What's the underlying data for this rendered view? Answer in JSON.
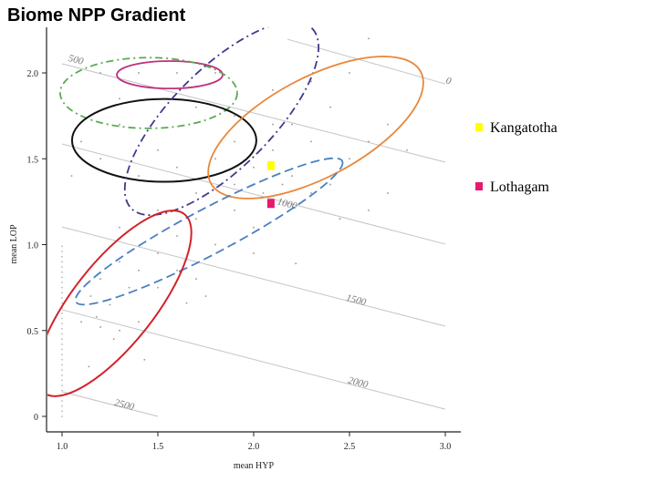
{
  "chart_data": {
    "type": "scatter",
    "title": "Biome NPP Gradient",
    "xlabel": "mean HYP",
    "ylabel": "mean LOP",
    "xlim": [
      0.92,
      3.07
    ],
    "ylim": [
      -0.09,
      2.3
    ],
    "xticks": [
      "1.0",
      "1.5",
      "2.0",
      "2.5",
      "3.0"
    ],
    "yticks": [
      "0",
      "0.5",
      "1.0",
      "1.5",
      "2.0"
    ],
    "grid": false,
    "contours": [
      {
        "label": "0",
        "from": [
          2.176,
          2.196
        ],
        "to": [
          3.0,
          1.936
        ],
        "label_at": [
          3.0,
          1.94
        ]
      },
      {
        "label": "500",
        "from": [
          1.0,
          2.053
        ],
        "to": [
          3.0,
          1.48
        ],
        "label_at": [
          1.03,
          2.07
        ]
      },
      {
        "label": "1000",
        "from": [
          1.0,
          1.586
        ],
        "to": [
          3.0,
          1.003
        ],
        "label_at": [
          2.12,
          1.235
        ]
      },
      {
        "label": "1500",
        "from": [
          1.0,
          1.103
        ],
        "to": [
          3.0,
          0.525
        ],
        "label_at": [
          2.48,
          0.675
        ]
      },
      {
        "label": "2000",
        "from": [
          1.0,
          0.621
        ],
        "to": [
          3.0,
          0.042
        ],
        "label_at": [
          2.49,
          0.195
        ]
      },
      {
        "label": "2500",
        "from": [
          1.0,
          0.143
        ],
        "to": [
          1.5,
          0.0
        ],
        "label_at": [
          1.27,
          0.065
        ]
      }
    ],
    "ellipses": [
      {
        "name": "magenta",
        "color": "#c0307f",
        "dash": "",
        "center": [
          1.562,
          1.989
        ],
        "major": [
          0.276,
          0
        ],
        "ratio": 0.26
      },
      {
        "name": "green",
        "color": "#5aaa52",
        "dash": "8 4 2 4",
        "center": [
          1.452,
          1.883
        ],
        "major": [
          0.462,
          0
        ],
        "ratio": 0.4
      },
      {
        "name": "black",
        "color": "#111111",
        "dash": "",
        "center": [
          1.533,
          1.607
        ],
        "major": [
          0.481,
          0
        ],
        "ratio": 0.45
      },
      {
        "name": "purple",
        "color": "#3e3a8c",
        "dash": "9 4 2 4",
        "center": [
          1.833,
          1.735
        ],
        "major": [
          0.471,
          0.525
        ],
        "ratio": 0.39
      },
      {
        "name": "orange",
        "color": "#e8873a",
        "dash": "",
        "center": [
          2.324,
          1.682
        ],
        "major": [
          0.548,
          0.324
        ],
        "ratio": 0.42
      },
      {
        "name": "blue",
        "color": "#4a7fc0",
        "dash": "10 5",
        "center": [
          1.767,
          1.077
        ],
        "major": [
          0.695,
          0.41
        ],
        "ratio": 0.15
      },
      {
        "name": "red",
        "color": "#d2232a",
        "dash": "",
        "center": [
          1.271,
          0.658
        ],
        "major": [
          0.367,
          0.52
        ],
        "ratio": 0.36
      }
    ],
    "points": [
      [
        1.2,
        2.0
      ],
      [
        1.4,
        2.0
      ],
      [
        1.6,
        2.0
      ],
      [
        1.8,
        2.0
      ],
      [
        1.3,
        1.85
      ],
      [
        1.7,
        1.8
      ],
      [
        1.9,
        1.75
      ],
      [
        2.1,
        1.9
      ],
      [
        2.3,
        1.95
      ],
      [
        2.5,
        2.0
      ],
      [
        2.6,
        2.2
      ],
      [
        2.2,
        1.7
      ],
      [
        2.4,
        1.8
      ],
      [
        2.6,
        1.6
      ],
      [
        2.7,
        1.7
      ],
      [
        2.3,
        1.6
      ],
      [
        2.5,
        1.5
      ],
      [
        2.1,
        1.55
      ],
      [
        2.2,
        1.4
      ],
      [
        2.0,
        1.45
      ],
      [
        2.05,
        1.3
      ],
      [
        2.15,
        1.35
      ],
      [
        2.3,
        1.3
      ],
      [
        2.4,
        1.35
      ],
      [
        1.9,
        1.6
      ],
      [
        1.8,
        1.5
      ],
      [
        1.6,
        1.45
      ],
      [
        1.4,
        1.4
      ],
      [
        1.2,
        1.5
      ],
      [
        1.05,
        1.4
      ],
      [
        1.1,
        1.6
      ],
      [
        1.3,
        1.7
      ],
      [
        1.5,
        1.55
      ],
      [
        1.7,
        1.3
      ],
      [
        1.9,
        1.2
      ],
      [
        2.0,
        1.1
      ],
      [
        1.8,
        1.0
      ],
      [
        1.6,
        1.05
      ],
      [
        1.5,
        0.95
      ],
      [
        1.4,
        0.85
      ],
      [
        1.3,
        0.9
      ],
      [
        1.2,
        0.8
      ],
      [
        1.15,
        0.7
      ],
      [
        1.25,
        0.65
      ],
      [
        1.35,
        0.75
      ],
      [
        1.5,
        0.75
      ],
      [
        1.6,
        0.85
      ],
      [
        1.7,
        0.8
      ],
      [
        1.75,
        0.7
      ],
      [
        1.65,
        0.66
      ],
      [
        1.1,
        0.55
      ],
      [
        1.2,
        0.52
      ],
      [
        1.3,
        0.5
      ],
      [
        1.4,
        0.55
      ],
      [
        1.18,
        0.58
      ],
      [
        1.27,
        0.45
      ],
      [
        1.43,
        0.33
      ],
      [
        1.14,
        0.29
      ],
      [
        2.22,
        0.89
      ],
      [
        2.6,
        1.2
      ],
      [
        2.7,
        1.3
      ],
      [
        2.0,
        0.95
      ],
      [
        1.9,
        1.35
      ],
      [
        2.45,
        1.15
      ],
      [
        2.8,
        1.55
      ],
      [
        1.5,
        1.2
      ],
      [
        1.3,
        1.1
      ],
      [
        1.7,
        1.15
      ],
      [
        2.1,
        1.7
      ],
      [
        1.55,
        1.85
      ]
    ],
    "column_x": 1.0,
    "column_range": [
      0.0,
      1.0
    ],
    "sites": [
      {
        "name": "Kangatotha",
        "x": 2.09,
        "y": 1.46,
        "color": "#ffff00"
      },
      {
        "name": "Lothagam",
        "x": 2.09,
        "y": 1.24,
        "color": "#e8186c"
      }
    ]
  }
}
